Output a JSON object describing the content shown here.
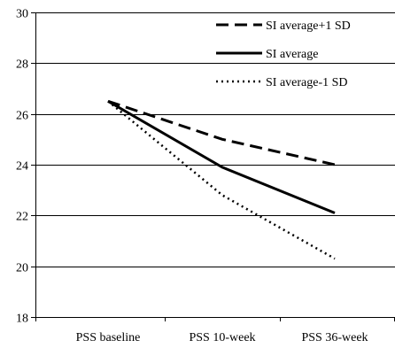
{
  "chart_data": {
    "type": "line",
    "categories": [
      "PSS baseline",
      "PSS 10-week",
      "PSS 36-week"
    ],
    "series": [
      {
        "name": "SI average+1 SD",
        "values": [
          26.5,
          25.0,
          24.0
        ],
        "style": "dashed"
      },
      {
        "name": "SI average",
        "values": [
          26.5,
          23.9,
          22.1
        ],
        "style": "solid"
      },
      {
        "name": "SI average-1 SD",
        "values": [
          26.5,
          22.8,
          20.3
        ],
        "style": "dotted"
      }
    ],
    "ylim": [
      18,
      30
    ],
    "yticks": [
      "18",
      "20",
      "22",
      "24",
      "26",
      "28",
      "30"
    ],
    "grid": true,
    "legend_position": "top-right",
    "title": "",
    "xlabel": "",
    "ylabel": ""
  }
}
